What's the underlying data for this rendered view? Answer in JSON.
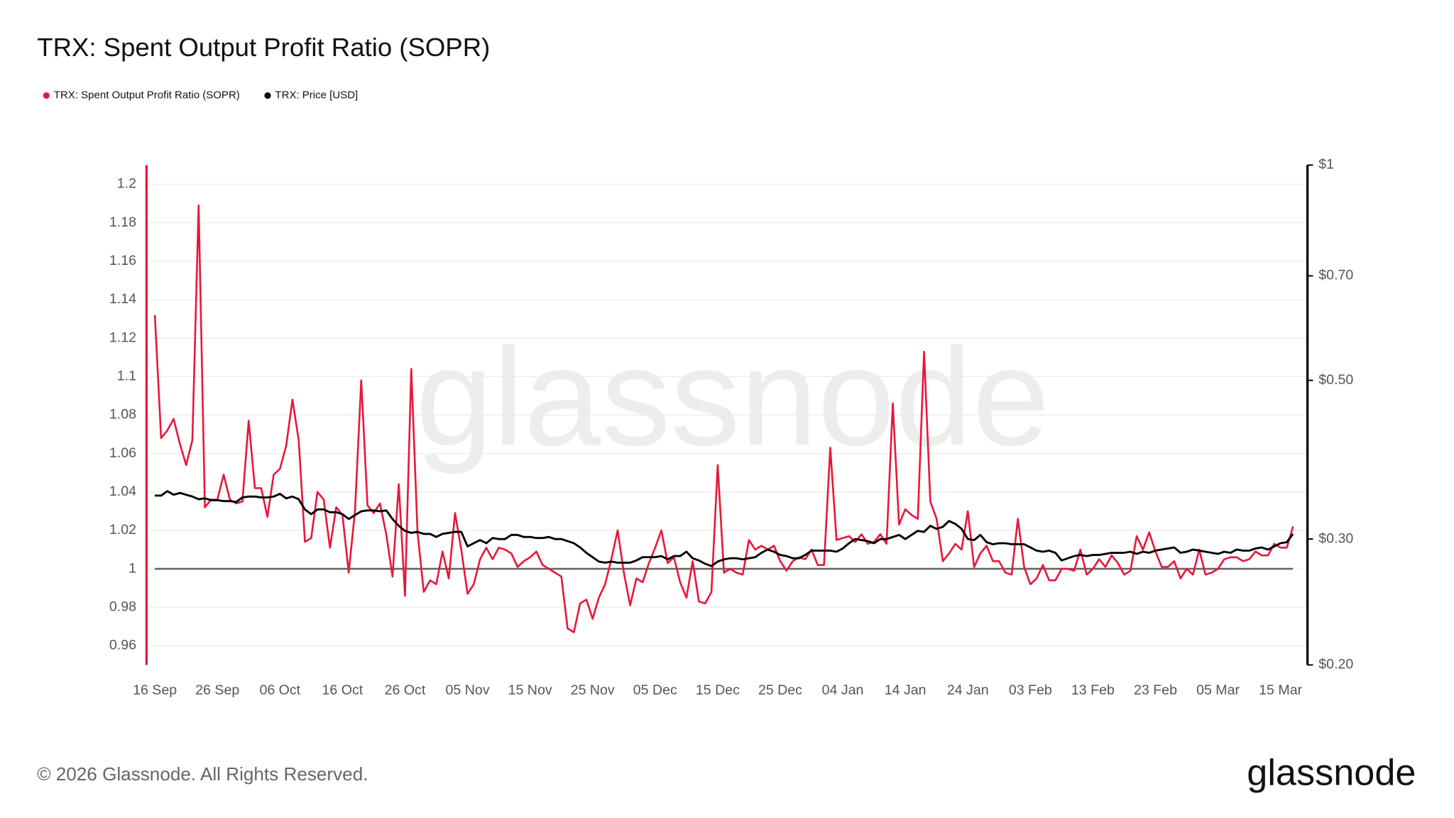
{
  "chart_data": {
    "type": "line",
    "title": "TRX: Spent Output Profit Ratio (SOPR)",
    "watermark": "glassnode",
    "footer": "© 2026 Glassnode. All Rights Reserved.",
    "logo": "glassnode",
    "legend": "top-left",
    "grid": true,
    "hline": 1,
    "categories": [
      "16 Sep",
      null,
      null,
      null,
      null,
      null,
      null,
      null,
      null,
      null,
      "26 Sep",
      null,
      null,
      null,
      null,
      null,
      null,
      null,
      null,
      null,
      "06 Oct",
      null,
      null,
      null,
      null,
      null,
      null,
      null,
      null,
      null,
      "16 Oct",
      null,
      null,
      null,
      null,
      null,
      null,
      null,
      null,
      null,
      "26 Oct",
      null,
      null,
      null,
      null,
      null,
      null,
      null,
      null,
      null,
      "05 Nov",
      null,
      null,
      null,
      null,
      null,
      null,
      null,
      null,
      null,
      "15 Nov",
      null,
      null,
      null,
      null,
      null,
      null,
      null,
      null,
      null,
      "25 Nov",
      null,
      null,
      null,
      null,
      null,
      null,
      null,
      null,
      null,
      "05 Dec",
      null,
      null,
      null,
      null,
      null,
      null,
      null,
      null,
      null,
      "15 Dec",
      null,
      null,
      null,
      null,
      null,
      null,
      null,
      null,
      null,
      "25 Dec",
      null,
      null,
      null,
      null,
      null,
      null,
      null,
      null,
      null,
      "04 Jan",
      null,
      null,
      null,
      null,
      null,
      null,
      null,
      null,
      null,
      "14 Jan",
      null,
      null,
      null,
      null,
      null,
      null,
      null,
      null,
      null,
      "24 Jan",
      null,
      null,
      null,
      null,
      null,
      null,
      null,
      null,
      null,
      "03 Feb",
      null,
      null,
      null,
      null,
      null,
      null,
      null,
      null,
      null,
      "13 Feb",
      null,
      null,
      null,
      null,
      null,
      null,
      null,
      null,
      null,
      "23 Feb",
      null,
      null,
      null,
      null,
      null,
      null,
      null,
      null,
      null,
      "05 Mar",
      null,
      null,
      null,
      null,
      null,
      null,
      null,
      null,
      null,
      "15 Mar",
      null,
      null
    ],
    "ylim": [
      0.95,
      1.21
    ],
    "yticks": [
      0.96,
      0.98,
      1,
      1.02,
      1.04,
      1.06,
      1.08,
      1.1,
      1.12,
      1.14,
      1.16,
      1.18,
      1.2
    ],
    "y2lim": [
      0.2,
      1
    ],
    "y2log": true,
    "y2ticks": [
      {
        "value": 0.2,
        "label": "$0.20"
      },
      {
        "value": 0.3,
        "label": "$0.30"
      },
      {
        "value": 0.5,
        "label": "$0.50"
      },
      {
        "value": 0.7,
        "label": "$0.70"
      },
      {
        "value": 1,
        "label": "$1"
      }
    ],
    "series": [
      {
        "name": "TRX: Spent Output Profit Ratio (SOPR)",
        "color": "#e8173a",
        "axis": "y",
        "values": [
          1.132,
          1.068,
          1.072,
          1.078,
          1.065,
          1.054,
          1.067,
          1.189,
          1.032,
          1.036,
          1.036,
          1.049,
          1.036,
          1.034,
          1.035,
          1.077,
          1.042,
          1.042,
          1.027,
          1.049,
          1.052,
          1.064,
          1.088,
          1.067,
          1.014,
          1.016,
          1.04,
          1.036,
          1.011,
          1.032,
          1.028,
          0.998,
          1.03,
          1.098,
          1.033,
          1.029,
          1.034,
          1.018,
          0.996,
          1.044,
          0.986,
          1.104,
          1.019,
          0.988,
          0.994,
          0.992,
          1.009,
          0.995,
          1.029,
          1.01,
          0.987,
          0.992,
          1.005,
          1.011,
          1.005,
          1.011,
          1.01,
          1.008,
          1.001,
          1.004,
          1.006,
          1.009,
          1.002,
          1.0,
          0.998,
          0.996,
          0.969,
          0.967,
          0.982,
          0.984,
          0.974,
          0.985,
          0.992,
          1.005,
          1.02,
          0.998,
          0.981,
          0.995,
          0.993,
          1.003,
          1.011,
          1.02,
          1.003,
          1.006,
          0.993,
          0.985,
          1.004,
          0.983,
          0.982,
          0.988,
          1.054,
          0.998,
          1.0,
          0.998,
          0.997,
          1.015,
          1.01,
          1.012,
          1.01,
          1.012,
          1.004,
          0.999,
          1.004,
          1.006,
          1.005,
          1.01,
          1.002,
          1.002,
          1.063,
          1.015,
          1.016,
          1.017,
          1.014,
          1.018,
          1.013,
          1.014,
          1.018,
          1.013,
          1.086,
          1.023,
          1.031,
          1.028,
          1.026,
          1.113,
          1.035,
          1.026,
          1.004,
          1.008,
          1.013,
          1.01,
          1.03,
          1.001,
          1.008,
          1.012,
          1.004,
          1.004,
          0.998,
          0.997,
          1.026,
          1.001,
          0.992,
          0.995,
          1.002,
          0.994,
          0.994,
          1.0,
          1.0,
          0.999,
          1.01,
          0.997,
          1.0,
          1.005,
          1.001,
          1.007,
          1.003,
          0.997,
          0.999,
          1.017,
          1.01,
          1.019,
          1.009,
          1.001,
          1.001,
          1.004,
          0.995,
          1.0,
          0.997,
          1.01,
          0.997,
          0.998,
          1.0,
          1.005,
          1.006,
          1.006,
          1.004,
          1.005,
          1.009,
          1.007,
          1.007,
          1.013,
          1.011,
          1.011,
          1.022
        ]
      },
      {
        "name": "TRX: Price [USD]",
        "color": "#000000",
        "axis": "y2",
        "values": [
          0.345,
          0.345,
          0.35,
          0.346,
          0.348,
          0.346,
          0.344,
          0.341,
          0.342,
          0.34,
          0.34,
          0.339,
          0.339,
          0.338,
          0.343,
          0.344,
          0.344,
          0.343,
          0.343,
          0.344,
          0.347,
          0.342,
          0.344,
          0.341,
          0.33,
          0.325,
          0.33,
          0.33,
          0.327,
          0.327,
          0.325,
          0.32,
          0.324,
          0.328,
          0.329,
          0.329,
          0.328,
          0.329,
          0.32,
          0.313,
          0.308,
          0.306,
          0.307,
          0.305,
          0.305,
          0.302,
          0.305,
          0.306,
          0.307,
          0.307,
          0.293,
          0.296,
          0.299,
          0.296,
          0.301,
          0.3,
          0.3,
          0.304,
          0.304,
          0.302,
          0.302,
          0.301,
          0.301,
          0.302,
          0.3,
          0.3,
          0.298,
          0.296,
          0.292,
          0.287,
          0.283,
          0.279,
          0.278,
          0.279,
          0.278,
          0.278,
          0.278,
          0.28,
          0.283,
          0.283,
          0.283,
          0.284,
          0.281,
          0.284,
          0.284,
          0.288,
          0.282,
          0.28,
          0.277,
          0.275,
          0.279,
          0.281,
          0.282,
          0.282,
          0.281,
          0.282,
          0.283,
          0.287,
          0.29,
          0.288,
          0.285,
          0.284,
          0.282,
          0.282,
          0.285,
          0.289,
          0.289,
          0.289,
          0.289,
          0.288,
          0.291,
          0.296,
          0.3,
          0.299,
          0.298,
          0.296,
          0.3,
          0.3,
          0.302,
          0.304,
          0.3,
          0.304,
          0.308,
          0.307,
          0.313,
          0.31,
          0.312,
          0.318,
          0.315,
          0.31,
          0.3,
          0.299,
          0.304,
          0.297,
          0.295,
          0.296,
          0.296,
          0.295,
          0.295,
          0.295,
          0.292,
          0.289,
          0.288,
          0.289,
          0.287,
          0.28,
          0.282,
          0.284,
          0.285,
          0.284,
          0.285,
          0.285,
          0.286,
          0.287,
          0.287,
          0.287,
          0.288,
          0.286,
          0.288,
          0.287,
          0.289,
          0.29,
          0.291,
          0.292,
          0.287,
          0.288,
          0.29,
          0.289,
          0.288,
          0.287,
          0.286,
          0.288,
          0.287,
          0.29,
          0.289,
          0.289,
          0.291,
          0.292,
          0.29,
          0.293,
          0.296,
          0.297,
          0.305
        ]
      }
    ]
  }
}
